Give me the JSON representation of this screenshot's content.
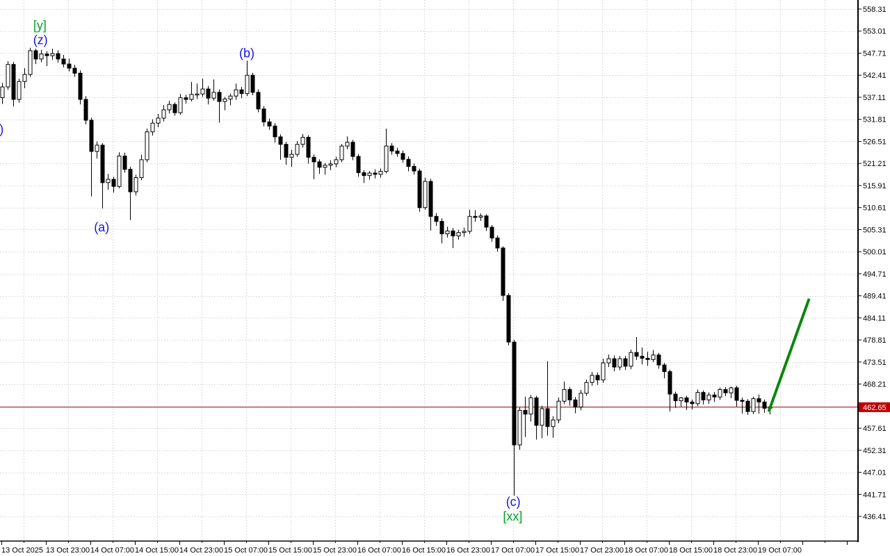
{
  "chart_data": {
    "type": "candlestick",
    "timeframe_note": "hourly candles, 8h between x labels",
    "current_price": {
      "value": "462.65",
      "line_color": "#aa0000",
      "tag_bg": "#c00000",
      "tag_text_color": "#ffffff"
    },
    "trendline": {
      "name": "green-projection-line",
      "color": "#0a870a",
      "from_bar": 137.9,
      "from_price": 461.9,
      "to_bar": 145.0,
      "to_price": 488.4
    },
    "y_axis": {
      "tick_step": 5.3,
      "ticks": [
        "558.31",
        "553.01",
        "547.71",
        "542.41",
        "537.11",
        "531.81",
        "526.51",
        "521.21",
        "515.91",
        "510.61",
        "505.31",
        "500.01",
        "494.71",
        "489.41",
        "484.11",
        "478.81",
        "473.51",
        "468.21",
        "462.91",
        "457.61",
        "452.31",
        "447.01",
        "441.71",
        "436.41"
      ]
    },
    "x_axis": {
      "labels": [
        "13 Oct 2025",
        "13 Oct 23:00",
        "14 Oct 07:00",
        "14 Oct 15:00",
        "14 Oct 23:00",
        "15 Oct 07:00",
        "15 Oct 15:00",
        "15 Oct 23:00",
        "16 Oct 07:00",
        "16 Oct 15:00",
        "16 Oct 23:00",
        "17 Oct 07:00",
        "17 Oct 15:00",
        "17 Oct 23:00",
        "18 Oct 07:00",
        "18 Oct 15:00",
        "18 Oct 23:00",
        "19 Oct 07:00"
      ]
    },
    "wave_labels": [
      {
        "name": "wave-label-y",
        "text": "[y]",
        "color": "#00a226",
        "bar": 6.8,
        "price": 554.4
      },
      {
        "name": "wave-label-z",
        "text": "(z)",
        "color": "#1414e8",
        "bar": 6.9,
        "price": 550.9
      },
      {
        "name": "wave-label-a",
        "text": "(a)",
        "color": "#1414e8",
        "bar": 17.9,
        "price": 505.9
      },
      {
        "name": "wave-label-b",
        "text": "(b)",
        "color": "#1414e8",
        "bar": 44.0,
        "price": 547.7
      },
      {
        "name": "wave-label-c",
        "text": "(c)",
        "color": "#1414e8",
        "bar": 91.9,
        "price": 439.9
      },
      {
        "name": "wave-label-xx",
        "text": "[xx]",
        "color": "#00a226",
        "bar": 91.8,
        "price": 436.4
      },
      {
        "name": "wave-label-left-partial",
        "text": ")",
        "color": "#1414e8",
        "bar": -0.1,
        "price": 529.4
      }
    ],
    "candles": [
      [
        537.0,
        540.6,
        535.5,
        539.6
      ],
      [
        539.6,
        545.8,
        538.9,
        545.0
      ],
      [
        545.0,
        545.6,
        534.9,
        536.6
      ],
      [
        536.6,
        541.6,
        535.8,
        540.9
      ],
      [
        540.9,
        544.1,
        539.3,
        542.6
      ],
      [
        542.6,
        549.0,
        542.0,
        548.3
      ],
      [
        548.3,
        548.8,
        545.1,
        546.3
      ],
      [
        546.3,
        548.5,
        545.5,
        547.5
      ],
      [
        547.5,
        548.2,
        544.6,
        547.1
      ],
      [
        547.1,
        548.8,
        546.1,
        547.6
      ],
      [
        547.6,
        548.4,
        545.4,
        546.3
      ],
      [
        546.3,
        547.3,
        544.3,
        545.1
      ],
      [
        545.1,
        546.4,
        543.3,
        544.1
      ],
      [
        544.1,
        544.9,
        542.0,
        542.9
      ],
      [
        542.9,
        543.6,
        535.4,
        536.6
      ],
      [
        536.6,
        537.4,
        530.6,
        531.6
      ],
      [
        531.6,
        532.2,
        513.3,
        524.1
      ],
      [
        524.1,
        526.5,
        522.4,
        525.6
      ],
      [
        525.6,
        526.1,
        510.4,
        516.6
      ],
      [
        516.6,
        518.7,
        514.9,
        517.4
      ],
      [
        517.4,
        518.0,
        514.2,
        515.7
      ],
      [
        515.7,
        523.9,
        515.2,
        523.0
      ],
      [
        523.0,
        523.8,
        519.0,
        519.8
      ],
      [
        519.8,
        520.4,
        507.6,
        514.4
      ],
      [
        514.4,
        518.5,
        513.5,
        517.8
      ],
      [
        517.8,
        523.3,
        517.2,
        522.1
      ],
      [
        522.1,
        529.6,
        521.5,
        528.8
      ],
      [
        528.8,
        531.8,
        527.9,
        530.9
      ],
      [
        530.9,
        533.1,
        529.9,
        532.1
      ],
      [
        532.1,
        535.2,
        531.3,
        534.1
      ],
      [
        534.1,
        536.3,
        533.2,
        535.4
      ],
      [
        535.4,
        535.9,
        532.7,
        533.4
      ],
      [
        533.4,
        537.9,
        532.9,
        537.0
      ],
      [
        537.0,
        537.7,
        535.6,
        536.6
      ],
      [
        536.6,
        540.8,
        536.1,
        537.8
      ],
      [
        537.8,
        540.4,
        536.7,
        537.9
      ],
      [
        537.9,
        541.6,
        537.2,
        539.1
      ],
      [
        539.1,
        539.8,
        535.4,
        536.9
      ],
      [
        536.9,
        541.4,
        536.3,
        538.3
      ],
      [
        538.3,
        539.0,
        531.0,
        536.1
      ],
      [
        536.1,
        537.2,
        534.0,
        536.7
      ],
      [
        536.7,
        538.0,
        535.2,
        537.4
      ],
      [
        537.4,
        540.4,
        536.5,
        538.9
      ],
      [
        538.9,
        539.6,
        536.9,
        538.0
      ],
      [
        538.0,
        545.9,
        537.4,
        542.4
      ],
      [
        542.4,
        543.0,
        537.6,
        538.3
      ],
      [
        538.3,
        539.0,
        533.5,
        534.3
      ],
      [
        534.3,
        535.0,
        530.1,
        531.2
      ],
      [
        531.2,
        532.0,
        529.3,
        530.2
      ],
      [
        530.2,
        530.9,
        526.2,
        527.6
      ],
      [
        527.6,
        528.2,
        522.1,
        525.8
      ],
      [
        525.8,
        526.4,
        520.9,
        522.7
      ],
      [
        522.7,
        524.5,
        520.4,
        523.4
      ],
      [
        523.4,
        526.6,
        522.8,
        525.8
      ],
      [
        525.8,
        528.3,
        525.0,
        527.5
      ],
      [
        527.5,
        528.0,
        521.2,
        522.7
      ],
      [
        522.7,
        523.4,
        517.4,
        521.6
      ],
      [
        521.6,
        522.2,
        518.7,
        520.3
      ],
      [
        520.3,
        521.3,
        518.5,
        520.8
      ],
      [
        520.8,
        522.0,
        519.6,
        521.1
      ],
      [
        521.1,
        522.8,
        520.3,
        522.1
      ],
      [
        522.1,
        525.9,
        521.5,
        525.4
      ],
      [
        525.4,
        527.7,
        524.6,
        526.3
      ],
      [
        526.3,
        526.9,
        522.0,
        522.9
      ],
      [
        522.9,
        523.5,
        518.0,
        519.0
      ],
      [
        519.0,
        519.6,
        516.5,
        518.3
      ],
      [
        518.3,
        519.4,
        517.3,
        518.9
      ],
      [
        518.9,
        519.8,
        517.6,
        518.6
      ],
      [
        518.6,
        520.0,
        517.8,
        519.3
      ],
      [
        519.3,
        529.6,
        518.8,
        525.4
      ],
      [
        525.4,
        526.1,
        523.3,
        524.2
      ],
      [
        524.2,
        525.0,
        522.8,
        523.6
      ],
      [
        523.6,
        524.3,
        521.4,
        522.2
      ],
      [
        522.2,
        522.9,
        519.3,
        520.5
      ],
      [
        520.5,
        521.2,
        518.5,
        519.4
      ],
      [
        519.4,
        520.0,
        509.6,
        510.6
      ],
      [
        510.6,
        517.8,
        510.1,
        516.9
      ],
      [
        516.9,
        517.5,
        505.1,
        508.5
      ],
      [
        508.5,
        509.3,
        506.2,
        507.3
      ],
      [
        507.3,
        508.0,
        502.0,
        504.3
      ],
      [
        504.3,
        506.0,
        503.4,
        505.0
      ],
      [
        505.0,
        505.7,
        500.9,
        503.8
      ],
      [
        503.8,
        505.3,
        502.9,
        504.6
      ],
      [
        504.6,
        505.8,
        503.6,
        504.9
      ],
      [
        504.9,
        510.1,
        504.3,
        508.5
      ],
      [
        508.5,
        510.0,
        507.2,
        508.3
      ],
      [
        508.3,
        509.2,
        507.4,
        508.6
      ],
      [
        508.6,
        509.0,
        505.0,
        505.9
      ],
      [
        505.9,
        506.4,
        502.4,
        503.3
      ],
      [
        503.3,
        503.9,
        500.0,
        500.9
      ],
      [
        500.9,
        501.3,
        488.2,
        489.5
      ],
      [
        489.5,
        490.0,
        477.5,
        478.3
      ],
      [
        478.3,
        478.8,
        441.4,
        453.6
      ],
      [
        453.6,
        462.6,
        452.4,
        461.9
      ],
      [
        461.9,
        465.2,
        455.5,
        461.0
      ],
      [
        461.0,
        465.6,
        459.2,
        464.9
      ],
      [
        464.9,
        465.4,
        454.9,
        458.3
      ],
      [
        458.3,
        463.0,
        455.2,
        462.3
      ],
      [
        462.3,
        473.7,
        455.8,
        458.0
      ],
      [
        458.0,
        460.5,
        455.3,
        459.6
      ],
      [
        459.6,
        465.0,
        458.8,
        464.1
      ],
      [
        464.1,
        468.8,
        463.4,
        466.9
      ],
      [
        466.9,
        467.5,
        463.0,
        464.4
      ],
      [
        464.4,
        465.1,
        461.2,
        462.7
      ],
      [
        462.7,
        466.8,
        461.9,
        466.0
      ],
      [
        466.0,
        469.3,
        465.4,
        468.6
      ],
      [
        468.6,
        471.1,
        467.8,
        470.3
      ],
      [
        470.3,
        471.0,
        468.0,
        469.2
      ],
      [
        469.2,
        474.3,
        468.5,
        473.3
      ],
      [
        473.3,
        475.3,
        472.3,
        474.3
      ],
      [
        474.3,
        475.1,
        471.3,
        472.3
      ],
      [
        472.3,
        475.0,
        471.5,
        474.3
      ],
      [
        474.3,
        475.0,
        471.6,
        472.5
      ],
      [
        472.5,
        476.5,
        471.8,
        475.8
      ],
      [
        475.8,
        479.5,
        474.0,
        474.9
      ],
      [
        474.9,
        477.0,
        472.9,
        474.4
      ],
      [
        474.4,
        476.0,
        472.6,
        474.1
      ],
      [
        474.1,
        476.4,
        473.5,
        475.2
      ],
      [
        475.2,
        475.7,
        471.9,
        472.8
      ],
      [
        472.8,
        473.3,
        469.6,
        471.2
      ],
      [
        471.2,
        471.7,
        461.6,
        465.8
      ],
      [
        465.8,
        466.4,
        462.5,
        464.2
      ],
      [
        464.2,
        465.1,
        462.8,
        464.9
      ],
      [
        464.9,
        465.4,
        462.0,
        463.9
      ],
      [
        463.9,
        464.5,
        462.1,
        463.5
      ],
      [
        463.5,
        466.9,
        462.9,
        466.2
      ],
      [
        466.2,
        466.7,
        463.3,
        464.4
      ],
      [
        464.4,
        466.2,
        463.5,
        465.6
      ],
      [
        465.6,
        466.3,
        463.9,
        465.1
      ],
      [
        465.1,
        467.4,
        464.4,
        466.9
      ],
      [
        466.9,
        467.5,
        465.3,
        466.1
      ],
      [
        466.1,
        467.6,
        464.8,
        467.3
      ],
      [
        467.3,
        467.8,
        462.8,
        464.3
      ],
      [
        464.3,
        465.0,
        461.1,
        464.1
      ],
      [
        464.1,
        464.6,
        460.8,
        461.6
      ],
      [
        461.6,
        465.2,
        461.0,
        464.7
      ],
      [
        464.7,
        465.7,
        461.1,
        463.9
      ],
      [
        463.9,
        464.5,
        461.3,
        462.4
      ],
      [
        462.4,
        463.3,
        460.9,
        462.65
      ]
    ],
    "style": {
      "up_fill": "#ffffff",
      "down_fill": "#000000",
      "outline": "#000000",
      "grid_color": "#dcdcdc",
      "axis_color": "#000000",
      "background": "#ffffff"
    }
  }
}
